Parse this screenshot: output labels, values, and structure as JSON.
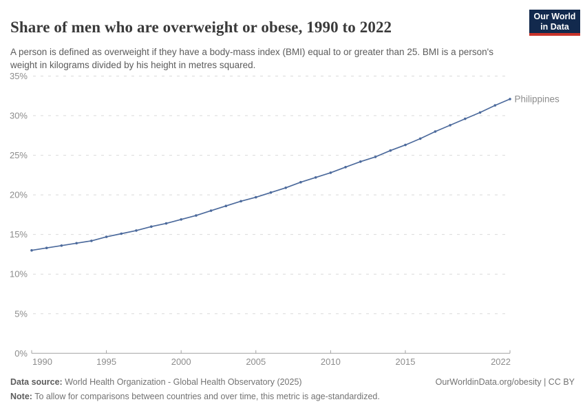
{
  "header": {
    "title": "Share of men who are overweight or obese, 1990 to 2022",
    "subtitle": "A person is defined as overweight if they have a body-mass index (BMI) equal to or greater than 25. BMI is a person's weight in kilograms divided by his height in metres squared.",
    "logo": {
      "line1": "Our World",
      "line2": "in Data",
      "bg_color": "#12294d",
      "accent_color": "#c9342b"
    }
  },
  "chart_data": {
    "type": "line",
    "title": "Share of men who are overweight or obese, 1990 to 2022",
    "xlabel": "",
    "ylabel": "",
    "x": [
      1990,
      1991,
      1992,
      1993,
      1994,
      1995,
      1996,
      1997,
      1998,
      1999,
      2000,
      2001,
      2002,
      2003,
      2004,
      2005,
      2006,
      2007,
      2008,
      2009,
      2010,
      2011,
      2012,
      2013,
      2014,
      2015,
      2016,
      2017,
      2018,
      2019,
      2020,
      2021,
      2022
    ],
    "series": [
      {
        "name": "Philippines",
        "color": "#4C6A9C",
        "values": [
          13.0,
          13.3,
          13.6,
          13.9,
          14.2,
          14.7,
          15.1,
          15.5,
          16.0,
          16.4,
          16.9,
          17.4,
          18.0,
          18.6,
          19.2,
          19.7,
          20.3,
          20.9,
          21.6,
          22.2,
          22.8,
          23.5,
          24.2,
          24.8,
          25.6,
          26.3,
          27.1,
          28.0,
          28.8,
          29.6,
          30.4,
          31.3,
          32.1
        ]
      }
    ],
    "xlim": [
      1990,
      2022
    ],
    "ylim": [
      0,
      35
    ],
    "yticks": [
      {
        "value": 0,
        "label": "0%"
      },
      {
        "value": 5,
        "label": "5%"
      },
      {
        "value": 10,
        "label": "10%"
      },
      {
        "value": 15,
        "label": "15%"
      },
      {
        "value": 20,
        "label": "20%"
      },
      {
        "value": 25,
        "label": "25%"
      },
      {
        "value": 30,
        "label": "30%"
      },
      {
        "value": 35,
        "label": "35%"
      }
    ],
    "xticks": [
      {
        "value": 1990,
        "label": "1990"
      },
      {
        "value": 1995,
        "label": "1995"
      },
      {
        "value": 2000,
        "label": "2000"
      },
      {
        "value": 2005,
        "label": "2005"
      },
      {
        "value": 2010,
        "label": "2010"
      },
      {
        "value": 2015,
        "label": "2015"
      },
      {
        "value": 2022,
        "label": "2022"
      }
    ],
    "grid": "horizontal-dashed",
    "legend_position": "end-of-line-label",
    "colors": {
      "gridline": "#d9d9d9",
      "axis": "#a0a0a0",
      "tick_text": "#8c8c8c"
    }
  },
  "footer": {
    "datasource_label": "Data source:",
    "datasource_text": " World Health Organization - Global Health Observatory (2025)",
    "note_label": "Note:",
    "note_text": " To allow for comparisons between countries and over time, this metric is age-standardized.",
    "link": "OurWorldinData.org/obesity | CC BY"
  }
}
